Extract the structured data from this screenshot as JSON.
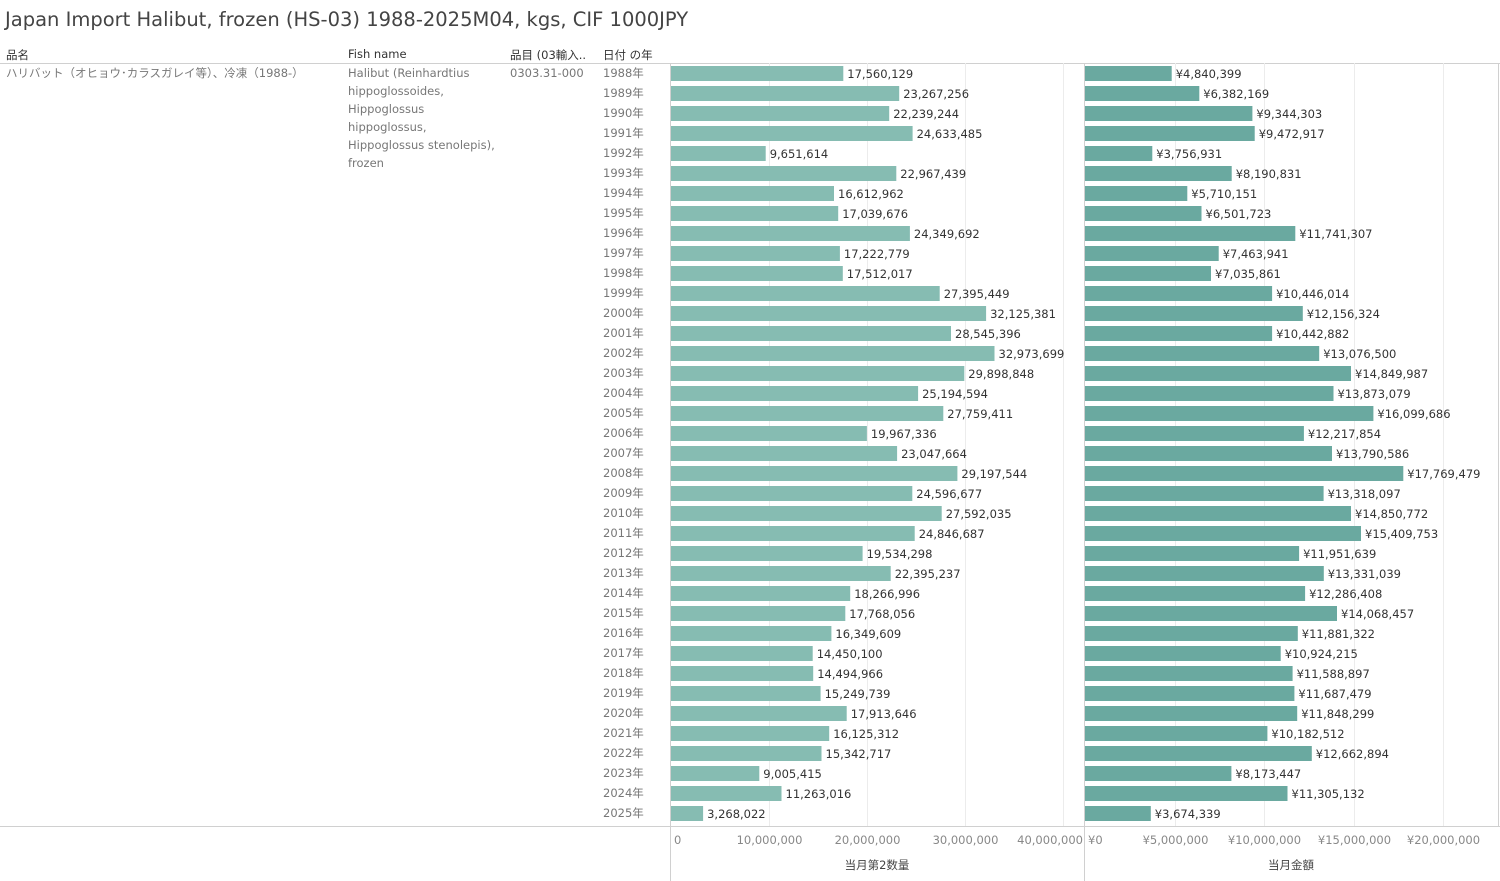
{
  "title": "Japan Import Halibut, frozen (HS-03) 1988-2025M04, kgs, CIF 1000JPY",
  "headers": {
    "name_jp": "品名",
    "fish_name": "Fish name",
    "item_code": "品目 (03輸入..",
    "year": "日付 の年"
  },
  "row": {
    "name_jp": "ハリバット（オヒョウ･カラスガレイ等）、冷凍（1988-）",
    "fish_name_lines": [
      "Halibut (Reinhardtius",
      "hippoglossoides,",
      "Hippoglossus",
      "hippoglossus,",
      "Hippoglossus stenolepis),",
      "frozen"
    ],
    "item_code": "0303.31-000"
  },
  "colors": {
    "bar_qty": "#86bcb2",
    "bar_value": "#6aa9a0"
  },
  "chart_data": [
    {
      "type": "bar",
      "orientation": "horizontal",
      "xlabel": "当月第2数量",
      "xlim": [
        0,
        42000000
      ],
      "ticks": [
        0,
        10000000,
        20000000,
        30000000,
        40000000
      ],
      "tick_labels": [
        "0",
        "10,000,000",
        "20,000,000",
        "30,000,000",
        "40,000,000"
      ],
      "grid": true,
      "categories": [
        "1988年",
        "1989年",
        "1990年",
        "1991年",
        "1992年",
        "1993年",
        "1994年",
        "1995年",
        "1996年",
        "1997年",
        "1998年",
        "1999年",
        "2000年",
        "2001年",
        "2002年",
        "2003年",
        "2004年",
        "2005年",
        "2006年",
        "2007年",
        "2008年",
        "2009年",
        "2010年",
        "2011年",
        "2012年",
        "2013年",
        "2014年",
        "2015年",
        "2016年",
        "2017年",
        "2018年",
        "2019年",
        "2020年",
        "2021年",
        "2022年",
        "2023年",
        "2024年",
        "2025年"
      ],
      "values": [
        17560129,
        23267256,
        22239244,
        24633485,
        9651614,
        22967439,
        16612962,
        17039676,
        24349692,
        17222779,
        17512017,
        27395449,
        32125381,
        28545396,
        32973699,
        29898848,
        25194594,
        27759411,
        19967336,
        23047664,
        29197544,
        24596677,
        27592035,
        24846687,
        19534298,
        22395237,
        18266996,
        17768056,
        16349609,
        14450100,
        14494966,
        15249739,
        17913646,
        16125312,
        15342717,
        9005415,
        11263016,
        3268022
      ],
      "labels": [
        "17,560,129",
        "23,267,256",
        "22,239,244",
        "24,633,485",
        "9,651,614",
        "22,967,439",
        "16,612,962",
        "17,039,676",
        "24,349,692",
        "17,222,779",
        "17,512,017",
        "27,395,449",
        "32,125,381",
        "28,545,396",
        "32,973,699",
        "29,898,848",
        "25,194,594",
        "27,759,411",
        "19,967,336",
        "23,047,664",
        "29,197,544",
        "24,596,677",
        "27,592,035",
        "24,846,687",
        "19,534,298",
        "22,395,237",
        "18,266,996",
        "17,768,056",
        "16,349,609",
        "14,450,100",
        "14,494,966",
        "15,249,739",
        "17,913,646",
        "16,125,312",
        "15,342,717",
        "9,005,415",
        "11,263,016",
        "3,268,022"
      ]
    },
    {
      "type": "bar",
      "orientation": "horizontal",
      "xlabel": "当月金額",
      "xlim": [
        0,
        23000000
      ],
      "ticks": [
        0,
        5000000,
        10000000,
        15000000,
        20000000
      ],
      "tick_labels": [
        "¥0",
        "¥5,000,000",
        "¥10,000,000",
        "¥15,000,000",
        "¥20,000,000"
      ],
      "grid": true,
      "categories": [
        "1988年",
        "1989年",
        "1990年",
        "1991年",
        "1992年",
        "1993年",
        "1994年",
        "1995年",
        "1996年",
        "1997年",
        "1998年",
        "1999年",
        "2000年",
        "2001年",
        "2002年",
        "2003年",
        "2004年",
        "2005年",
        "2006年",
        "2007年",
        "2008年",
        "2009年",
        "2010年",
        "2011年",
        "2012年",
        "2013年",
        "2014年",
        "2015年",
        "2016年",
        "2017年",
        "2018年",
        "2019年",
        "2020年",
        "2021年",
        "2022年",
        "2023年",
        "2024年",
        "2025年"
      ],
      "values": [
        4840399,
        6382169,
        9344303,
        9472917,
        3756931,
        8190831,
        5710151,
        6501723,
        11741307,
        7463941,
        7035861,
        10446014,
        12156324,
        10442882,
        13076500,
        14849987,
        13873079,
        16099686,
        12217854,
        13790586,
        17769479,
        13318097,
        14850772,
        15409753,
        11951639,
        13331039,
        12286408,
        14068457,
        11881322,
        10924215,
        11588897,
        11687479,
        11848299,
        10182512,
        12662894,
        8173447,
        11305132,
        3674339
      ],
      "labels": [
        "¥4,840,399",
        "¥6,382,169",
        "¥9,344,303",
        "¥9,472,917",
        "¥3,756,931",
        "¥8,190,831",
        "¥5,710,151",
        "¥6,501,723",
        "¥11,741,307",
        "¥7,463,941",
        "¥7,035,861",
        "¥10,446,014",
        "¥12,156,324",
        "¥10,442,882",
        "¥13,076,500",
        "¥14,849,987",
        "¥13,873,079",
        "¥16,099,686",
        "¥12,217,854",
        "¥13,790,586",
        "¥17,769,479",
        "¥13,318,097",
        "¥14,850,772",
        "¥15,409,753",
        "¥11,951,639",
        "¥13,331,039",
        "¥12,286,408",
        "¥14,068,457",
        "¥11,881,322",
        "¥10,924,215",
        "¥11,588,897",
        "¥11,687,479",
        "¥11,848,299",
        "¥10,182,512",
        "¥12,662,894",
        "¥8,173,447",
        "¥11,305,132",
        "¥3,674,339"
      ]
    }
  ]
}
